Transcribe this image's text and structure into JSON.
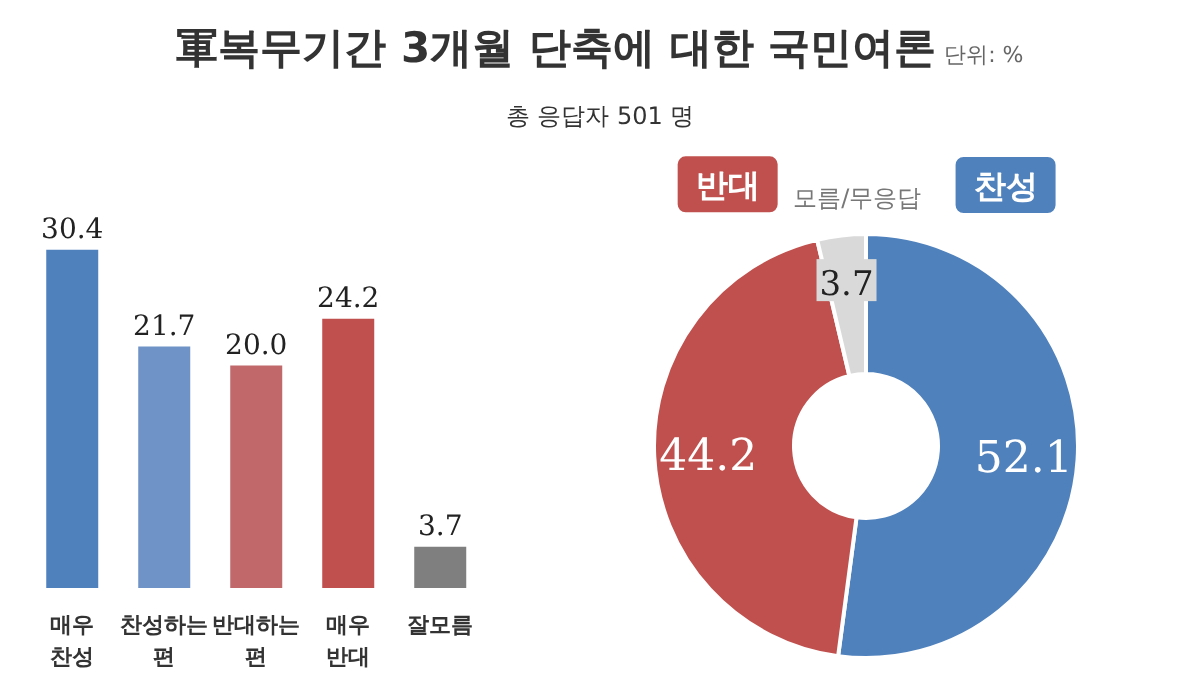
{
  "chart_data": [
    {
      "type": "bar",
      "categories": [
        "매우 찬성",
        "찬성하는 편",
        "반대하는 편",
        "매우 반대",
        "잘모름"
      ],
      "values": [
        30.4,
        21.7,
        20.0,
        24.2,
        3.7
      ],
      "colors": [
        "#4f81bd",
        "#6f93c6",
        "#c0686a",
        "#c0504d",
        "#7f7f7f"
      ],
      "value_labels": [
        "30.4",
        "21.7",
        "20.0",
        "24.2",
        "3.7"
      ],
      "tick_labels": "x"
    },
    {
      "type": "donut",
      "title": "軍복무기간 3개월 단축에 대한 국민여론",
      "subtitle": "총 응답자 501 명",
      "annotations": [
        "단위: %"
      ],
      "categories": [
        "찬성",
        "반대",
        "모름/무응답"
      ],
      "values": [
        52.1,
        44.2,
        3.7
      ],
      "colors": [
        "#4f81bd",
        "#c0504d",
        "#d9d9d9"
      ],
      "data_labels": true
    }
  ]
}
